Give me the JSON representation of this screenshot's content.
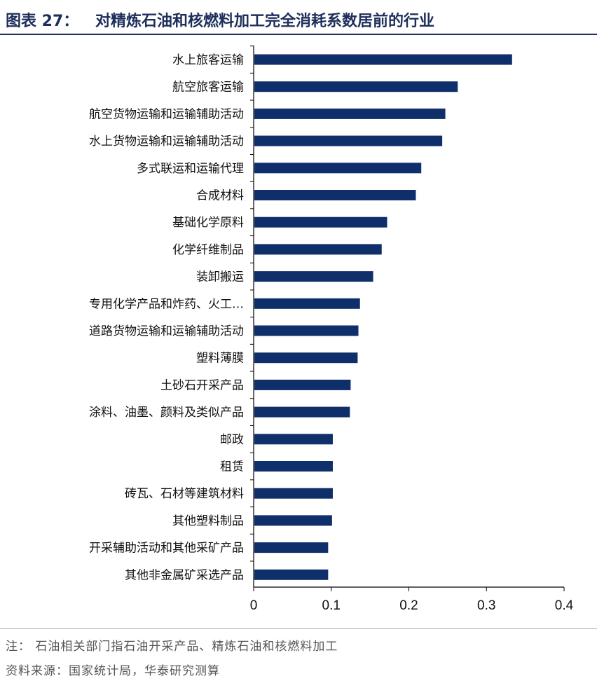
{
  "header": {
    "prefix": "图表 27：",
    "title": "对精炼石油和核燃料加工完全消耗系数居前的行业"
  },
  "chart_data": {
    "type": "bar",
    "orientation": "horizontal",
    "categories": [
      "水上旅客运输",
      "航空旅客运输",
      "航空货物运输和运输辅助活动",
      "水上货物运输和运输辅助活动",
      "多式联运和运输代理",
      "合成材料",
      "基础化学原料",
      "化学纤维制品",
      "装卸搬运",
      "专用化学产品和炸药、火工…",
      "道路货物运输和运输辅助活动",
      "塑料薄膜",
      "土砂石开采产品",
      "涂料、油墨、颜料及类似产品",
      "邮政",
      "租赁",
      "砖瓦、石材等建筑材料",
      "其他塑料制品",
      "开采辅助活动和其他采矿产品",
      "其他非金属矿采选产品"
    ],
    "values": [
      0.333,
      0.263,
      0.247,
      0.243,
      0.216,
      0.209,
      0.172,
      0.165,
      0.154,
      0.137,
      0.135,
      0.134,
      0.125,
      0.124,
      0.102,
      0.102,
      0.102,
      0.101,
      0.096,
      0.096
    ],
    "xlim": [
      0,
      0.4
    ],
    "xticks": [
      "0",
      "0.1",
      "0.2",
      "0.3",
      "0.4"
    ],
    "bar_color": "#0f2f6b",
    "grid": false,
    "legend": "none"
  },
  "notes": {
    "line1": "注：  石油相关部门指石油开采产品、精炼石油和核燃料加工",
    "line2": "资料来源：国家统计局，华泰研究测算"
  }
}
